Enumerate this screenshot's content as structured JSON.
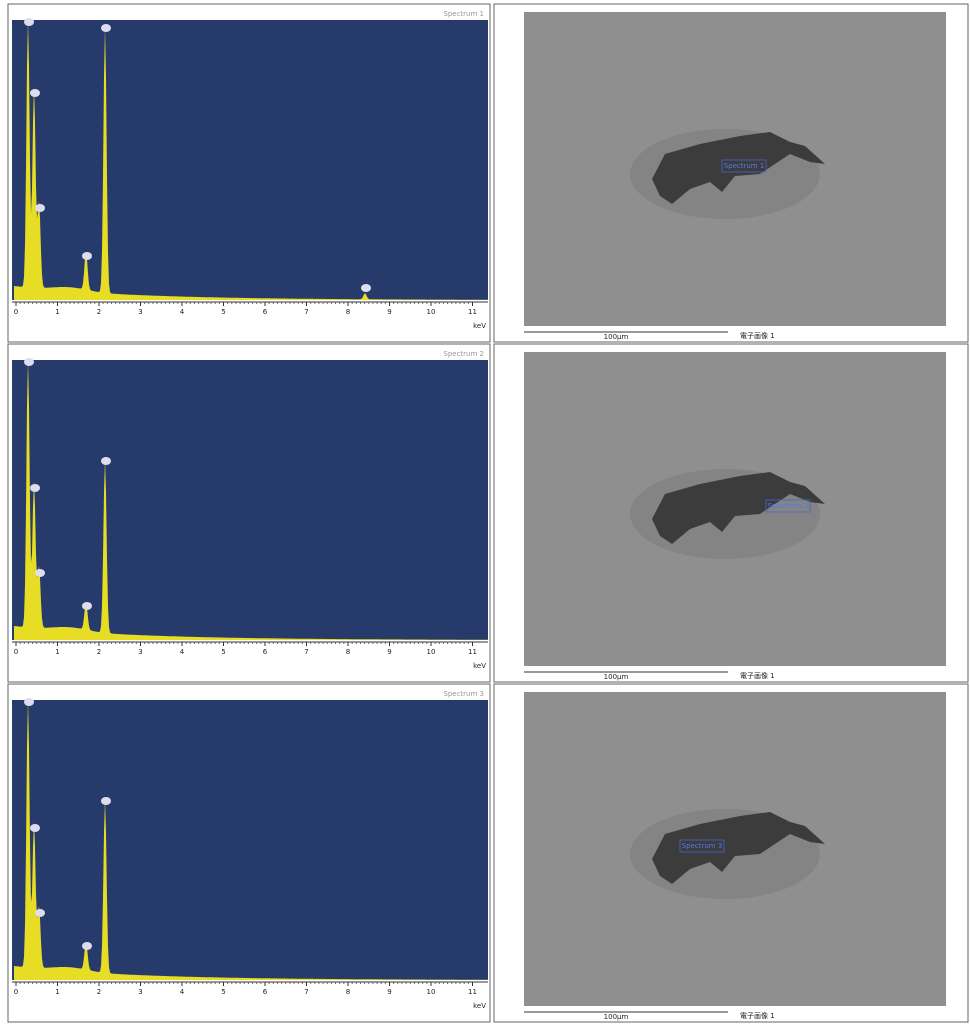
{
  "rows": [
    {
      "spectrum": {
        "label": "Spectrum 1",
        "xticks": [
          "0",
          "1",
          "2",
          "3",
          "4",
          "5",
          "6",
          "7",
          "8",
          "9",
          "10",
          "11"
        ],
        "unit": "keV"
      },
      "image": {
        "spot": "Spectrum 1",
        "scale": "100µm",
        "caption": "電子画像 1"
      }
    },
    {
      "spectrum": {
        "label": "Spectrum 2",
        "xticks": [
          "0",
          "1",
          "2",
          "3",
          "4",
          "5",
          "6",
          "7",
          "8",
          "9",
          "10",
          "11"
        ],
        "unit": "keV"
      },
      "image": {
        "spot": "Spectrum 2",
        "scale": "100µm",
        "caption": "電子画像 1"
      }
    },
    {
      "spectrum": {
        "label": "Spectrum 3",
        "xticks": [
          "0",
          "1",
          "2",
          "3",
          "4",
          "5",
          "6",
          "7",
          "8",
          "9",
          "10",
          "11"
        ],
        "unit": "keV"
      },
      "image": {
        "spot": "Spectrum 3",
        "scale": "100µm",
        "caption": "電子画像 1"
      }
    }
  ]
}
